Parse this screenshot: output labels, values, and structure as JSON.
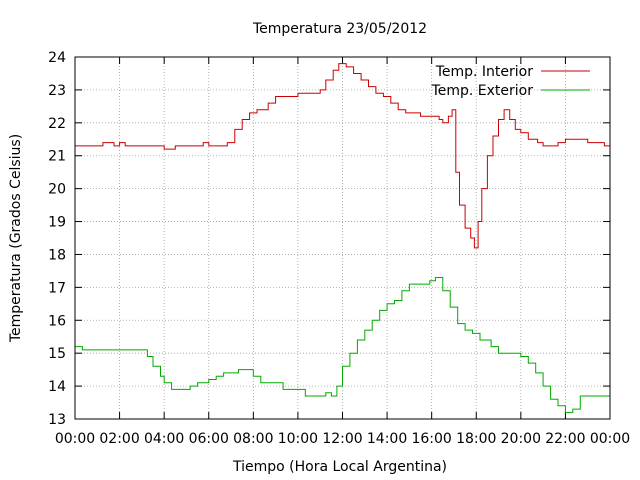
{
  "chart_data": {
    "type": "line",
    "title": "Temperatura 23/05/2012",
    "xlabel": "Tiempo (Hora Local Argentina)",
    "ylabel": "Temperatura (Grados Celsius)",
    "xlim": [
      "00:00",
      "24:00"
    ],
    "ylim": [
      13,
      24
    ],
    "xticks": [
      "00:00",
      "02:00",
      "04:00",
      "06:00",
      "08:00",
      "10:00",
      "12:00",
      "14:00",
      "16:00",
      "18:00",
      "20:00",
      "22:00",
      "00:00"
    ],
    "yticks": [
      "13",
      "14",
      "15",
      "16",
      "17",
      "18",
      "19",
      "20",
      "21",
      "22",
      "23",
      "24"
    ],
    "grid": true,
    "legend_position": "top-right",
    "series": [
      {
        "name": "Temp. Interior",
        "color": "#cc0000",
        "points": [
          [
            "00:00",
            21.3
          ],
          [
            "01:00",
            21.3
          ],
          [
            "01:15",
            21.4
          ],
          [
            "01:45",
            21.3
          ],
          [
            "02:00",
            21.4
          ],
          [
            "02:15",
            21.3
          ],
          [
            "03:00",
            21.3
          ],
          [
            "03:45",
            21.3
          ],
          [
            "04:00",
            21.2
          ],
          [
            "04:30",
            21.3
          ],
          [
            "05:30",
            21.3
          ],
          [
            "05:45",
            21.4
          ],
          [
            "06:00",
            21.3
          ],
          [
            "06:30",
            21.3
          ],
          [
            "06:50",
            21.4
          ],
          [
            "07:10",
            21.8
          ],
          [
            "07:30",
            22.1
          ],
          [
            "07:50",
            22.3
          ],
          [
            "08:10",
            22.4
          ],
          [
            "08:40",
            22.6
          ],
          [
            "09:00",
            22.8
          ],
          [
            "09:30",
            22.8
          ],
          [
            "10:00",
            22.9
          ],
          [
            "10:45",
            22.9
          ],
          [
            "11:00",
            23.0
          ],
          [
            "11:15",
            23.3
          ],
          [
            "11:35",
            23.6
          ],
          [
            "11:50",
            23.8
          ],
          [
            "12:10",
            23.7
          ],
          [
            "12:30",
            23.5
          ],
          [
            "12:50",
            23.3
          ],
          [
            "13:10",
            23.1
          ],
          [
            "13:30",
            22.9
          ],
          [
            "13:50",
            22.8
          ],
          [
            "14:10",
            22.6
          ],
          [
            "14:30",
            22.4
          ],
          [
            "14:50",
            22.3
          ],
          [
            "15:30",
            22.2
          ],
          [
            "16:00",
            22.2
          ],
          [
            "16:20",
            22.1
          ],
          [
            "16:30",
            22.0
          ],
          [
            "16:45",
            22.2
          ],
          [
            "16:55",
            22.4
          ],
          [
            "17:05",
            20.5
          ],
          [
            "17:15",
            19.5
          ],
          [
            "17:30",
            18.8
          ],
          [
            "17:45",
            18.5
          ],
          [
            "17:55",
            18.2
          ],
          [
            "18:05",
            19.0
          ],
          [
            "18:15",
            20.0
          ],
          [
            "18:30",
            21.0
          ],
          [
            "18:45",
            21.6
          ],
          [
            "19:00",
            22.1
          ],
          [
            "19:15",
            22.4
          ],
          [
            "19:30",
            22.1
          ],
          [
            "19:45",
            21.8
          ],
          [
            "20:00",
            21.7
          ],
          [
            "20:20",
            21.5
          ],
          [
            "20:45",
            21.4
          ],
          [
            "21:00",
            21.3
          ],
          [
            "21:20",
            21.3
          ],
          [
            "21:40",
            21.4
          ],
          [
            "22:00",
            21.5
          ],
          [
            "22:30",
            21.5
          ],
          [
            "23:00",
            21.4
          ],
          [
            "23:30",
            21.4
          ],
          [
            "23:45",
            21.3
          ],
          [
            "24:00",
            21.4
          ]
        ]
      },
      {
        "name": "Temp. Exterior",
        "color": "#00aa00",
        "points": [
          [
            "00:00",
            15.2
          ],
          [
            "00:20",
            15.1
          ],
          [
            "01:00",
            15.1
          ],
          [
            "02:00",
            15.1
          ],
          [
            "03:00",
            15.1
          ],
          [
            "03:15",
            14.9
          ],
          [
            "03:30",
            14.6
          ],
          [
            "03:50",
            14.3
          ],
          [
            "04:00",
            14.1
          ],
          [
            "04:20",
            13.9
          ],
          [
            "05:00",
            13.9
          ],
          [
            "05:10",
            14.0
          ],
          [
            "05:30",
            14.1
          ],
          [
            "06:00",
            14.2
          ],
          [
            "06:20",
            14.3
          ],
          [
            "06:40",
            14.4
          ],
          [
            "07:00",
            14.4
          ],
          [
            "07:20",
            14.5
          ],
          [
            "07:40",
            14.5
          ],
          [
            "08:00",
            14.3
          ],
          [
            "08:20",
            14.1
          ],
          [
            "09:00",
            14.1
          ],
          [
            "09:20",
            13.9
          ],
          [
            "10:00",
            13.9
          ],
          [
            "10:20",
            13.7
          ],
          [
            "11:00",
            13.7
          ],
          [
            "11:15",
            13.8
          ],
          [
            "11:30",
            13.7
          ],
          [
            "11:45",
            14.0
          ],
          [
            "12:00",
            14.6
          ],
          [
            "12:20",
            15.0
          ],
          [
            "12:40",
            15.4
          ],
          [
            "13:00",
            15.7
          ],
          [
            "13:20",
            16.0
          ],
          [
            "13:40",
            16.3
          ],
          [
            "14:00",
            16.5
          ],
          [
            "14:20",
            16.6
          ],
          [
            "14:40",
            16.9
          ],
          [
            "15:00",
            17.1
          ],
          [
            "15:40",
            17.1
          ],
          [
            "15:55",
            17.2
          ],
          [
            "16:10",
            17.3
          ],
          [
            "16:30",
            16.9
          ],
          [
            "16:50",
            16.4
          ],
          [
            "17:10",
            15.9
          ],
          [
            "17:30",
            15.7
          ],
          [
            "17:50",
            15.6
          ],
          [
            "18:10",
            15.4
          ],
          [
            "18:40",
            15.2
          ],
          [
            "19:00",
            15.0
          ],
          [
            "19:40",
            15.0
          ],
          [
            "20:00",
            14.9
          ],
          [
            "20:20",
            14.7
          ],
          [
            "20:40",
            14.4
          ],
          [
            "21:00",
            14.0
          ],
          [
            "21:20",
            13.6
          ],
          [
            "21:40",
            13.4
          ],
          [
            "22:00",
            13.2
          ],
          [
            "22:20",
            13.3
          ],
          [
            "22:40",
            13.7
          ],
          [
            "23:00",
            13.7
          ],
          [
            "24:00",
            13.7
          ]
        ]
      }
    ]
  }
}
